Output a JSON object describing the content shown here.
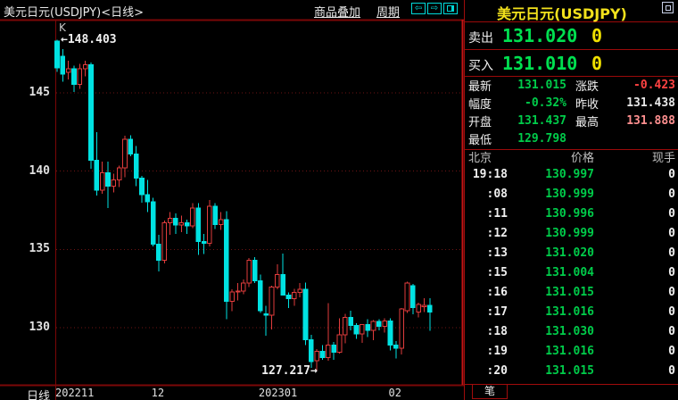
{
  "colors": {
    "up_candle": "#e03c3c",
    "down_candle": "#00e2e2",
    "grid": "#6e1414",
    "border": "#7b0707",
    "cursor_line": "#c41414",
    "price_green": "#00cc4a",
    "bidask_green": "#00e050",
    "yellow": "#f0e000",
    "change_red": "#ff4242",
    "high_pink": "#ff9090",
    "title_yellow": "#f2e11c"
  },
  "topbar": {
    "title": "美元日元(USDJPY)<日线>",
    "overlay_label": "商品叠加",
    "period_label": "周期",
    "prev_icon": "⇦",
    "next_icon": "⇨"
  },
  "chart": {
    "k_label": "K",
    "high_annotation": "←148.403",
    "low_annotation": "127.217→",
    "period_label": "日线"
  },
  "chart_data": {
    "type": "candlestick",
    "symbol": "USDJPY",
    "period": "daily",
    "y_ticks": [
      145,
      140,
      135,
      130
    ],
    "y_range": [
      126.3,
      149.5
    ],
    "x_ticks": [
      {
        "label": "202211",
        "index": 0
      },
      {
        "label": "12",
        "index": 17
      },
      {
        "label": "202301",
        "index": 36
      },
      {
        "label": "02",
        "index": 59
      }
    ],
    "high": 148.403,
    "low": 127.217,
    "candles": [
      [
        148.3,
        148.403,
        146.35,
        146.6
      ],
      [
        147.35,
        147.8,
        145.7,
        146.2
      ],
      [
        146.3,
        147.05,
        145.85,
        146.55
      ],
      [
        146.55,
        146.75,
        145.05,
        145.55
      ],
      [
        145.55,
        146.85,
        145.25,
        146.55
      ],
      [
        146.55,
        147.05,
        146.05,
        146.8
      ],
      [
        146.8,
        146.95,
        140.15,
        140.7
      ],
      [
        140.7,
        142.5,
        138.45,
        138.8
      ],
      [
        138.8,
        140.6,
        138.55,
        139.9
      ],
      [
        139.9,
        140.6,
        137.65,
        139.05
      ],
      [
        139.05,
        139.85,
        138.65,
        139.45
      ],
      [
        139.45,
        140.35,
        139.0,
        140.2
      ],
      [
        140.2,
        142.25,
        139.6,
        142.05
      ],
      [
        142.05,
        142.3,
        140.95,
        141.1
      ],
      [
        141.1,
        141.6,
        139.05,
        139.55
      ],
      [
        139.55,
        139.7,
        138.0,
        138.5
      ],
      [
        138.5,
        139.45,
        137.4,
        138.05
      ],
      [
        138.05,
        138.3,
        135.2,
        135.35
      ],
      [
        135.35,
        135.95,
        133.6,
        134.3
      ],
      [
        134.3,
        136.85,
        134.1,
        136.7
      ],
      [
        136.7,
        137.4,
        135.95,
        137.0
      ],
      [
        137.0,
        137.3,
        136.0,
        136.55
      ],
      [
        136.55,
        137.15,
        136.1,
        136.7
      ],
      [
        136.7,
        136.9,
        136.0,
        136.5
      ],
      [
        136.5,
        137.95,
        136.35,
        137.65
      ],
      [
        137.65,
        137.95,
        134.65,
        135.5
      ],
      [
        135.5,
        136.0,
        134.7,
        135.4
      ],
      [
        135.4,
        138.15,
        135.2,
        137.75
      ],
      [
        137.75,
        137.95,
        136.3,
        136.6
      ],
      [
        136.6,
        137.4,
        136.25,
        136.9
      ],
      [
        136.9,
        137.45,
        130.55,
        131.7
      ],
      [
        131.7,
        132.45,
        131.05,
        132.3
      ],
      [
        132.3,
        132.85,
        131.75,
        132.35
      ],
      [
        132.35,
        133.1,
        132.15,
        132.85
      ],
      [
        132.85,
        134.45,
        132.6,
        134.3
      ],
      [
        134.3,
        134.5,
        132.85,
        133.0
      ],
      [
        133.0,
        133.4,
        130.95,
        131.1
      ],
      [
        130.9,
        131.4,
        129.5,
        130.8
      ],
      [
        130.8,
        132.7,
        129.9,
        132.6
      ],
      [
        132.6,
        134.05,
        132.45,
        133.4
      ],
      [
        133.4,
        134.75,
        132.05,
        132.1
      ],
      [
        132.1,
        132.25,
        131.25,
        131.85
      ],
      [
        131.85,
        132.5,
        131.4,
        132.25
      ],
      [
        132.25,
        132.85,
        131.95,
        132.45
      ],
      [
        132.45,
        132.9,
        128.9,
        129.25
      ],
      [
        129.25,
        129.55,
        127.45,
        127.85
      ],
      [
        127.9,
        128.65,
        127.217,
        128.5
      ],
      [
        128.5,
        128.9,
        127.95,
        128.1
      ],
      [
        128.1,
        131.58,
        127.9,
        128.9
      ],
      [
        128.9,
        129.1,
        127.95,
        128.45
      ],
      [
        128.45,
        130.6,
        128.35,
        129.55
      ],
      [
        129.55,
        130.9,
        129.0,
        130.65
      ],
      [
        130.65,
        131.1,
        129.85,
        130.15
      ],
      [
        130.15,
        130.3,
        129.3,
        129.6
      ],
      [
        129.6,
        130.25,
        129.05,
        130.2
      ],
      [
        130.2,
        130.55,
        129.4,
        129.85
      ],
      [
        129.85,
        130.5,
        129.2,
        130.4
      ],
      [
        130.4,
        130.55,
        129.85,
        130.1
      ],
      [
        130.1,
        130.6,
        129.7,
        130.45
      ],
      [
        130.45,
        130.6,
        128.55,
        128.9
      ],
      [
        128.9,
        129.15,
        128.05,
        128.7
      ],
      [
        128.7,
        131.25,
        128.3,
        131.2
      ],
      [
        131.1,
        132.95,
        130.95,
        132.85
      ],
      [
        132.7,
        132.8,
        130.85,
        131.3
      ],
      [
        131.0,
        131.6,
        130.65,
        131.5
      ],
      [
        131.35,
        131.9,
        131.0,
        131.44
      ],
      [
        131.437,
        131.888,
        129.798,
        131.015
      ]
    ]
  },
  "quote": {
    "title": "美元日元(USDJPY)",
    "sell_label": "卖出",
    "sell_price": "131.020",
    "sell_vol": "0",
    "buy_label": "买入",
    "buy_price": "131.010",
    "buy_vol": "0",
    "stats": [
      {
        "l1": "最新",
        "v1": "131.015",
        "c1": "c-green",
        "l2": "涨跌",
        "v2": "-0.423",
        "c2": "c-red"
      },
      {
        "l1": "幅度",
        "v1": "-0.32%",
        "c1": "c-green",
        "l2": "昨收",
        "v2": "131.438",
        "c2": "c-white"
      },
      {
        "l1": "开盘",
        "v1": "131.437",
        "c1": "c-green",
        "l2": "最高",
        "v2": "131.888",
        "c2": "c-pink"
      },
      {
        "l1": "最低",
        "v1": "129.798",
        "c1": "c-green",
        "l2": "",
        "v2": "",
        "c2": "c-white"
      }
    ],
    "table": {
      "headers": [
        "北京",
        "价格",
        "现手"
      ],
      "rows": [
        [
          "19:18",
          "130.997",
          "0"
        ],
        [
          ":08",
          "130.999",
          "0"
        ],
        [
          ":11",
          "130.996",
          "0"
        ],
        [
          ":12",
          "130.999",
          "0"
        ],
        [
          ":13",
          "131.020",
          "0"
        ],
        [
          ":15",
          "131.004",
          "0"
        ],
        [
          ":16",
          "131.015",
          "0"
        ],
        [
          ":17",
          "131.016",
          "0"
        ],
        [
          ":18",
          "131.030",
          "0"
        ],
        [
          ":19",
          "131.016",
          "0"
        ],
        [
          ":20",
          "131.015",
          "0"
        ]
      ]
    },
    "tab_label": "笔"
  }
}
